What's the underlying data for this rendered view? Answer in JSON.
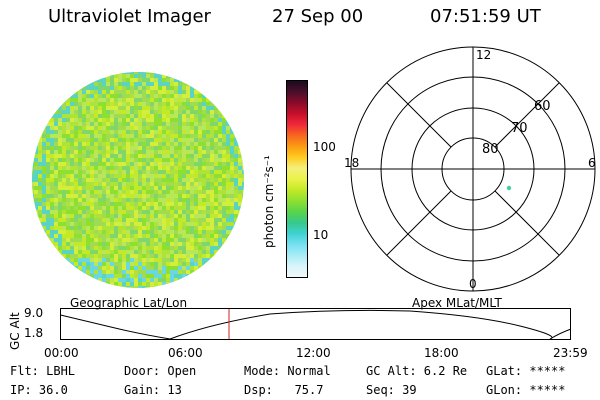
{
  "header": {
    "instrument": "Ultraviolet Imager",
    "date": "27 Sep 00",
    "time": "07:51:59 UT"
  },
  "colorbar": {
    "unit_label": "photon cm⁻²s⁻¹",
    "tick_labels": [
      "100",
      "10"
    ],
    "colors": [
      "#1a0a1e",
      "#4a0f2a",
      "#8a0a2a",
      "#c4102a",
      "#f0283a",
      "#f7671f",
      "#fa9a12",
      "#ffcc20",
      "#f4ef7a",
      "#eaf24a",
      "#c2ea28",
      "#8ee030",
      "#5ad44a",
      "#36c98a",
      "#3fd2d2",
      "#74e0f0",
      "#a8ecf6",
      "#d8f4fa",
      "#f2f8fa"
    ]
  },
  "polar_plot": {
    "mlt_labels": {
      "top": "12",
      "left": "18",
      "right": "6",
      "bottom": "0"
    },
    "lat_labels": [
      "80",
      "70",
      "60"
    ],
    "point_color": "#3fd2a0"
  },
  "timeline": {
    "left_label": "Geographic Lat/Lon",
    "right_label": "Apex MLat/MLT",
    "axis_label": "GC Alt",
    "y_ticks": [
      "9.0",
      "1.8"
    ],
    "x_ticks": [
      "00:00",
      "06:00",
      "12:00",
      "18:00",
      "23:59"
    ],
    "marker_time": "07:51:59",
    "marker_color": "#cc2222"
  },
  "status": {
    "row1": {
      "flt": "Flt: LBHL",
      "door": "Door: Open",
      "mode": "Mode: Normal",
      "gcalt": "GC Alt: 6.2 Re",
      "glat": "GLat: *****"
    },
    "row2": {
      "ip": "IP: 36.0",
      "gain": "Gain: 13",
      "dsp": "Dsp:   75.7",
      "seq": "Seq: 39",
      "glon": "GLon: *****"
    }
  }
}
